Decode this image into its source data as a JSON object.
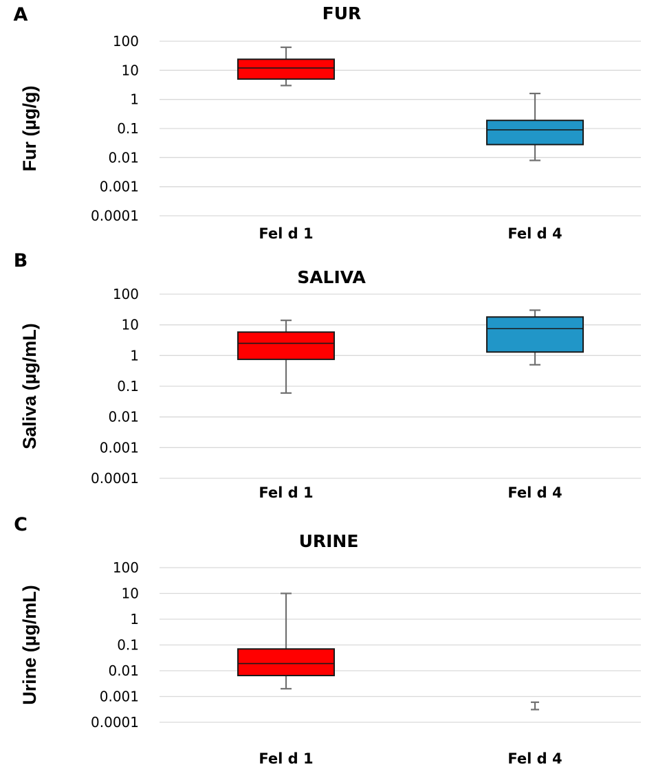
{
  "chart_data": [
    {
      "type": "box",
      "panel": "A",
      "title": "FUR",
      "ylabel": "Fur (µg/g)",
      "yscale": "log",
      "ylim": [
        0.0001,
        100
      ],
      "yticks": [
        "100",
        "10",
        "1",
        "0.1",
        "0.01",
        "0.001",
        "0.0001"
      ],
      "categories": [
        "Fel d 1",
        "Fel d 4"
      ],
      "boxes": [
        {
          "category": "Fel d 1",
          "color": "#ff0000",
          "min": 3,
          "q1": 5,
          "median": 12,
          "q3": 24,
          "max": 62
        },
        {
          "category": "Fel d 4",
          "color": "#2196c8",
          "min": 0.008,
          "q1": 0.028,
          "median": 0.09,
          "q3": 0.19,
          "max": 1.6
        }
      ]
    },
    {
      "type": "box",
      "panel": "B",
      "title": "SALIVA",
      "ylabel": "Saliva (µg/mL)",
      "yscale": "log",
      "ylim": [
        0.0001,
        100
      ],
      "yticks": [
        "100",
        "10",
        "1",
        "0.1",
        "0.01",
        "0.001",
        "0.0001"
      ],
      "categories": [
        "Fel d 1",
        "Fel d 4"
      ],
      "boxes": [
        {
          "category": "Fel d 1",
          "color": "#ff0000",
          "min": 0.06,
          "q1": 0.75,
          "median": 2.5,
          "q3": 5.8,
          "max": 14
        },
        {
          "category": "Fel d 4",
          "color": "#2196c8",
          "min": 0.5,
          "q1": 1.3,
          "median": 7.5,
          "q3": 18,
          "max": 30
        }
      ]
    },
    {
      "type": "box",
      "panel": "C",
      "title": "URINE",
      "ylabel": "Urine (µg/mL)",
      "yscale": "log",
      "ylim": [
        0.0001,
        100
      ],
      "yticks": [
        "100",
        "10",
        "1",
        "0.1",
        "0.01",
        "0.001",
        "0.0001"
      ],
      "categories": [
        "Fel d 1",
        "Fel d 4"
      ],
      "boxes": [
        {
          "category": "Fel d 1",
          "color": "#ff0000",
          "min": 0.002,
          "q1": 0.0065,
          "median": 0.019,
          "q3": 0.07,
          "max": 10
        },
        {
          "category": "Fel d 4",
          "color": "#2196c8",
          "min": 0.00045,
          "q1": 0.00045,
          "median": 0.00045,
          "q3": 0.00045,
          "max": 0.0006
        }
      ]
    }
  ]
}
